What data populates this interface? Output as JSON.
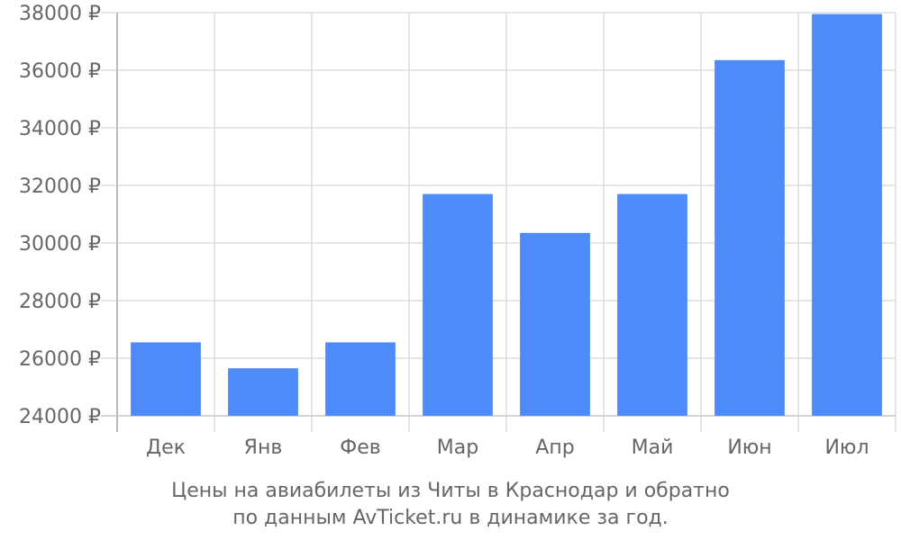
{
  "chart_data": {
    "type": "bar",
    "categories": [
      "Дек",
      "Янв",
      "Фев",
      "Мар",
      "Апр",
      "Май",
      "Июн",
      "Июл"
    ],
    "values": [
      26550,
      25650,
      26550,
      31700,
      30350,
      31700,
      36350,
      37950
    ],
    "ylim": [
      24000,
      38000
    ],
    "yticks": [
      24000,
      26000,
      28000,
      30000,
      32000,
      34000,
      36000,
      38000
    ],
    "ytick_suffix": " ₽",
    "grid": true,
    "bar_color": "#4d8afa"
  },
  "caption": {
    "line1": "Цены на авиабилеты из Читы в Краснодар и обратно",
    "line2": "по данным AvTicket.ru в динамике за год."
  }
}
